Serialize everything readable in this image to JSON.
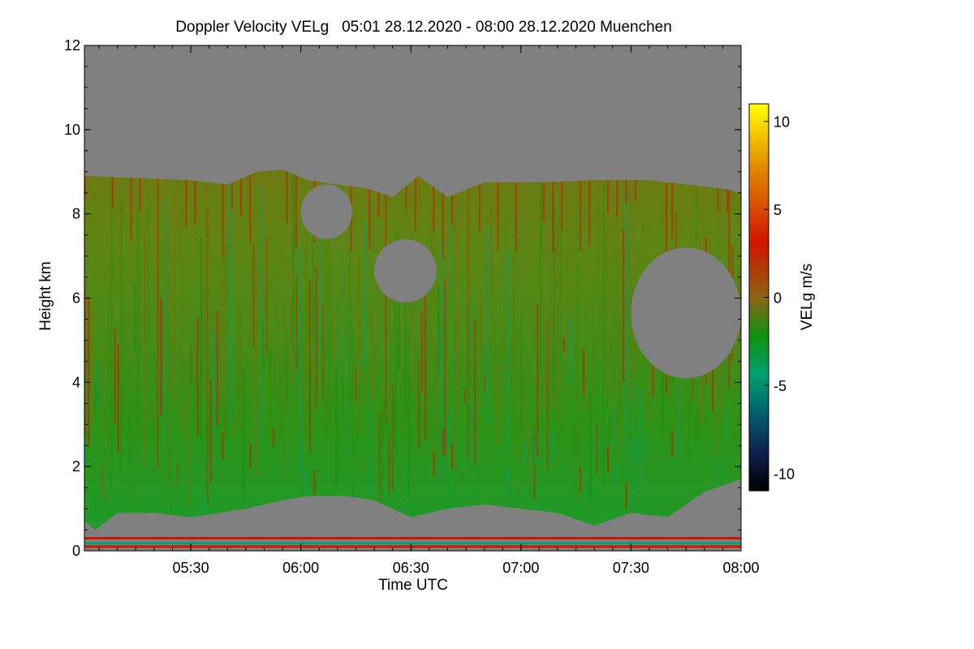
{
  "chart_data": {
    "type": "heatmap",
    "title": "Doppler Velocity VELg   05:01 28.12.2020 - 08:00 28.12.2020 Muenchen",
    "xlabel": "Time UTC",
    "ylabel": "Height km",
    "colorbar_label": "VELg m/s",
    "xlim": [
      "05:01",
      "08:00"
    ],
    "ylim": [
      0,
      12
    ],
    "x_ticks": [
      "05:30",
      "06:00",
      "06:30",
      "07:00",
      "07:30",
      "08:00"
    ],
    "x_tick_values_min": [
      30,
      60,
      90,
      120,
      150,
      180
    ],
    "y_ticks": [
      0,
      2,
      4,
      6,
      8,
      10,
      12
    ],
    "colorbar_ticks": [
      10,
      5,
      0,
      -5,
      -10
    ],
    "colorbar_range": [
      -11,
      11
    ],
    "colors": {
      "background": "#808080",
      "strong_positive": "#ffff00",
      "positive": "#e08000",
      "weak_positive": "#d21400",
      "near_zero": "#8c6414",
      "weak_negative": "#109010",
      "negative": "#00a070",
      "strong_negative": "#000020"
    },
    "echo_top_profile_km": [
      {
        "t": 1,
        "h": 8.9
      },
      {
        "t": 15,
        "h": 8.85
      },
      {
        "t": 30,
        "h": 8.8
      },
      {
        "t": 40,
        "h": 8.7
      },
      {
        "t": 48,
        "h": 9.0
      },
      {
        "t": 55,
        "h": 9.05
      },
      {
        "t": 62,
        "h": 8.8
      },
      {
        "t": 70,
        "h": 8.7
      },
      {
        "t": 78,
        "h": 8.6
      },
      {
        "t": 85,
        "h": 8.4
      },
      {
        "t": 92,
        "h": 8.9
      },
      {
        "t": 100,
        "h": 8.4
      },
      {
        "t": 110,
        "h": 8.75
      },
      {
        "t": 125,
        "h": 8.75
      },
      {
        "t": 140,
        "h": 8.8
      },
      {
        "t": 155,
        "h": 8.8
      },
      {
        "t": 165,
        "h": 8.7
      },
      {
        "t": 175,
        "h": 8.6
      },
      {
        "t": 180,
        "h": 8.5
      }
    ],
    "echo_base_profile_km": [
      {
        "t": 1,
        "h": 0.7
      },
      {
        "t": 4,
        "h": 0.5
      },
      {
        "t": 10,
        "h": 0.9
      },
      {
        "t": 20,
        "h": 0.9
      },
      {
        "t": 30,
        "h": 0.8
      },
      {
        "t": 45,
        "h": 1.0
      },
      {
        "t": 55,
        "h": 1.2
      },
      {
        "t": 62,
        "h": 1.3
      },
      {
        "t": 72,
        "h": 1.3
      },
      {
        "t": 80,
        "h": 1.2
      },
      {
        "t": 90,
        "h": 0.8
      },
      {
        "t": 100,
        "h": 1.0
      },
      {
        "t": 110,
        "h": 1.1
      },
      {
        "t": 120,
        "h": 1.0
      },
      {
        "t": 130,
        "h": 0.9
      },
      {
        "t": 140,
        "h": 0.6
      },
      {
        "t": 150,
        "h": 0.9
      },
      {
        "t": 160,
        "h": 0.8
      },
      {
        "t": 170,
        "h": 1.4
      },
      {
        "t": 180,
        "h": 1.7
      }
    ],
    "no_echo_gaps": [
      {
        "t_start": 80,
        "t_end": 97,
        "h_bottom": 5.9,
        "h_top": 7.4
      },
      {
        "t_start": 60,
        "t_end": 74,
        "h_bottom": 7.4,
        "h_top": 8.7
      },
      {
        "t_start": 150,
        "t_end": 180,
        "h_bottom": 4.1,
        "h_top": 7.2
      }
    ],
    "near_ground_bands_km": [
      {
        "h": 0.3,
        "color": "weak_positive"
      },
      {
        "h": 0.18,
        "color": "negative"
      },
      {
        "h": 0.1,
        "color": "weak_positive"
      }
    ]
  }
}
